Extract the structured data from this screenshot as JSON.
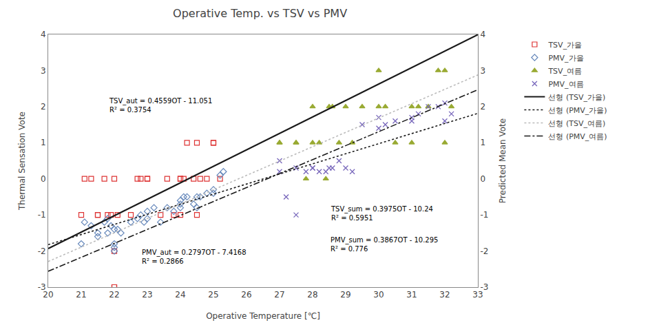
{
  "chart_data": {
    "type": "scatter",
    "title": "Operative Temp. vs TSV vs PMV",
    "xlabel": "Operative Temperature [℃]",
    "ylabel": "Thermal Sensation Vote",
    "y2label": "Predicted Mean Vote",
    "xlim": [
      20,
      33
    ],
    "xticks": [
      20,
      21,
      22,
      23,
      24,
      25,
      26,
      27,
      28,
      29,
      30,
      31,
      32,
      33
    ],
    "ylim": [
      -3,
      4
    ],
    "yticks": [
      -3,
      -2,
      -1,
      0,
      1,
      2,
      3,
      4
    ],
    "y2lim": [
      -3,
      4
    ],
    "y2ticks": [
      -3,
      -2,
      -1,
      0,
      1,
      2,
      3,
      4
    ],
    "grid": false,
    "legend": "right",
    "series": [
      {
        "name": "TSV_가을",
        "type": "scatter",
        "marker": "square-open",
        "color": "#dd3333",
        "x": [
          21.0,
          21.1,
          21.3,
          21.5,
          21.5,
          21.7,
          21.8,
          21.9,
          22.0,
          22.0,
          22.0,
          22.0,
          22.1,
          22.5,
          22.7,
          22.8,
          23.0,
          23.0,
          23.4,
          23.6,
          23.8,
          24.0,
          24.0,
          24.0,
          24.1,
          24.2,
          24.4,
          24.5,
          24.5,
          24.6,
          24.8,
          25.0,
          25.0,
          25.2
        ],
        "values": [
          -1.0,
          0.0,
          0.0,
          -1.0,
          -1.0,
          0.0,
          -1.0,
          -1.0,
          -3.0,
          -3.0,
          -2.0,
          0.0,
          -1.0,
          -1.0,
          0.0,
          0.0,
          0.0,
          0.0,
          -1.0,
          0.0,
          -1.0,
          0.0,
          -1.0,
          0.0,
          0.0,
          1.0,
          0.0,
          1.0,
          -1.0,
          0.0,
          0.0,
          1.0,
          1.0,
          0.0
        ]
      },
      {
        "name": "PMV_가을",
        "type": "scatter",
        "marker": "diamond-open",
        "color": "#6688bb",
        "x": [
          21.0,
          21.1,
          21.3,
          21.5,
          21.5,
          21.7,
          21.8,
          21.8,
          21.9,
          22.0,
          22.0,
          22.0,
          22.0,
          22.1,
          22.2,
          22.5,
          22.7,
          22.8,
          22.9,
          23.0,
          23.0,
          23.2,
          23.4,
          23.6,
          23.8,
          24.0,
          24.0,
          24.0,
          24.1,
          24.2,
          24.4,
          24.5,
          24.5,
          24.6,
          24.8,
          25.0,
          25.0,
          25.2,
          25.3
        ],
        "values": [
          -1.8,
          -1.2,
          -1.3,
          -1.6,
          -1.5,
          -1.2,
          -1.5,
          -1.1,
          -1.3,
          -2.0,
          -1.9,
          -1.8,
          -1.4,
          -1.4,
          -1.5,
          -1.2,
          -1.1,
          -1.0,
          -1.2,
          -0.9,
          -1.1,
          -0.8,
          -1.2,
          -0.8,
          -0.9,
          -0.7,
          -0.8,
          -0.6,
          -0.5,
          -0.5,
          -0.7,
          -0.5,
          -0.8,
          -0.5,
          -0.4,
          -0.3,
          -0.4,
          0.1,
          0.2
        ]
      },
      {
        "name": "TSV_여름",
        "type": "scatter",
        "marker": "triangle-up",
        "color": "#99aa33",
        "x": [
          27.0,
          27.0,
          27.5,
          27.5,
          27.8,
          28.0,
          28.0,
          28.2,
          28.4,
          28.5,
          28.6,
          28.8,
          29.0,
          29.2,
          29.5,
          30.0,
          30.0,
          30.2,
          30.5,
          31.0,
          31.0,
          31.2,
          31.5,
          31.8,
          32.0,
          32.0,
          32.2
        ],
        "values": [
          1.0,
          1.0,
          1.0,
          1.0,
          0.0,
          1.0,
          2.0,
          1.0,
          0.0,
          2.0,
          2.0,
          1.0,
          2.0,
          1.0,
          2.0,
          2.0,
          3.0,
          2.0,
          1.0,
          1.0,
          2.0,
          2.0,
          2.0,
          3.0,
          1.0,
          3.0,
          2.0
        ]
      },
      {
        "name": "PMV_여름",
        "type": "scatter",
        "marker": "x-thin-open",
        "color": "#7766bb",
        "x": [
          27.0,
          27.0,
          27.2,
          27.5,
          27.5,
          27.8,
          28.0,
          28.0,
          28.2,
          28.4,
          28.5,
          28.6,
          28.8,
          29.0,
          29.2,
          29.5,
          30.0,
          30.0,
          30.2,
          30.5,
          31.0,
          31.0,
          31.2,
          31.5,
          31.8,
          32.0,
          32.0,
          32.2
        ],
        "values": [
          0.5,
          0.2,
          -0.5,
          0.3,
          -1.0,
          0.2,
          0.3,
          0.3,
          0.2,
          0.2,
          0.3,
          0.3,
          0.5,
          0.3,
          0.2,
          1.5,
          1.4,
          1.7,
          1.5,
          1.6,
          1.6,
          1.7,
          1.8,
          2.0,
          2.0,
          1.6,
          2.1,
          1.8
        ]
      },
      {
        "name": "선형 (TSV_가을)",
        "type": "line",
        "line_style": "solid",
        "color": "#1a1a1a",
        "x": [
          20,
          33
        ],
        "values": [
          -1.933,
          3.9937
        ]
      },
      {
        "name": "선형 (PMV_가을)",
        "type": "line",
        "line_style": "dot",
        "color": "#1a1a1a",
        "x": [
          20,
          33
        ],
        "values": [
          -1.8228,
          1.8133
        ]
      },
      {
        "name": "선형 (TSV_여름)",
        "type": "line",
        "line_style": "dot",
        "color": "#bbbbbb",
        "x": [
          20,
          33
        ],
        "values": [
          -2.29,
          2.8775
        ]
      },
      {
        "name": "선형 (PMV_여름)",
        "type": "line",
        "line_style": "dashdot",
        "color": "#1a1a1a",
        "x": [
          20,
          33
        ],
        "values": [
          -2.561,
          2.4661
        ]
      }
    ],
    "annotations": [
      {
        "text": "TSV_aut = 0.4559OT - 11.051\nR² = 0.3754",
        "x": 21.8,
        "y": 2.3
      },
      {
        "text": "PMV_aut = 0.2797OT - 7.4168\nR² = 0.2866",
        "x": 22.8,
        "y": -1.9
      },
      {
        "text": "TSV_sum = 0.3975OT - 10.24\nR² = 0.5951",
        "x": 28.5,
        "y": -0.7
      },
      {
        "text": "PMV_sum = 0.3867OT - 10.295\nR² = 0.776",
        "x": 28.5,
        "y": -1.55
      }
    ]
  }
}
